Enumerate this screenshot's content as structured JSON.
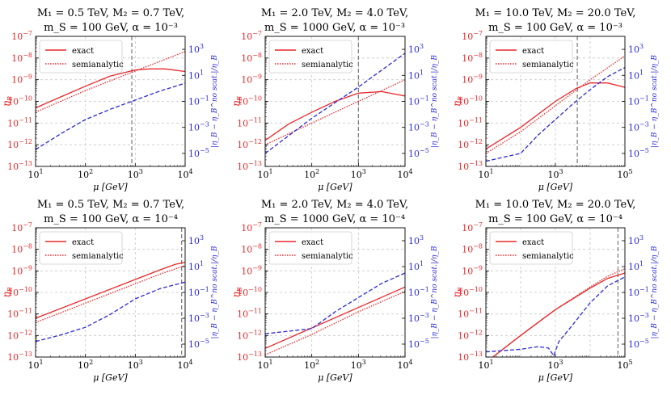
{
  "colors": {
    "exact": "#e8282b",
    "semi": "#e8282b",
    "ratio": "#2a2ad6",
    "vline": "#777777",
    "grid": "#c8c8c8"
  },
  "legend": {
    "exact": "exact",
    "semi": "semianalytic"
  },
  "axis_text": {
    "xlabel": "μ [GeV]",
    "ylabel_left": "η",
    "ylabel_left_sub": "B",
    "ylabel_right": "|η_B − η_B^no scat.|/η_B",
    "eta_exponents": [
      "−7",
      "−8",
      "−9",
      "−10",
      "−11",
      "−12",
      "−13"
    ],
    "ratio_exponents": [
      "3",
      "1",
      "−1",
      "−3",
      "−5"
    ],
    "x_exponents_short": [
      "1",
      "2",
      "3",
      "4"
    ],
    "x_exponents_long": [
      "1",
      "3",
      "5"
    ]
  },
  "chart_data": [
    {
      "type": "line",
      "title": [
        "M₁ = 0.5 TeV,  M₂ = 0.7 TeV,",
        "m_S = 100 GeV,  α = 10⁻³"
      ],
      "xrange": [
        1,
        4
      ],
      "xticks": [
        1,
        2,
        3,
        4
      ],
      "xlabel": "μ [GeV]",
      "ylim_left_log10": [
        -13,
        -7
      ],
      "ylim_right_log10": [
        -6,
        4
      ],
      "vline_log10": 2.93,
      "series": [
        {
          "name": "exact",
          "log10x": [
            1,
            1.5,
            2,
            2.5,
            3,
            3.3,
            3.6,
            4
          ],
          "log10y": [
            -10.3,
            -9.8,
            -9.3,
            -8.83,
            -8.55,
            -8.5,
            -8.5,
            -8.62
          ]
        },
        {
          "name": "semianalytic",
          "log10x": [
            1,
            2,
            3,
            4
          ],
          "log10y": [
            -10.5,
            -9.5,
            -8.6,
            -7.7
          ]
        },
        {
          "name": "ratio",
          "log10x": [
            1,
            1.5,
            2,
            2.5,
            3,
            3.5,
            4
          ],
          "log10y": [
            -4.7,
            -3.5,
            -2.4,
            -1.6,
            -0.9,
            -0.2,
            0.4
          ]
        }
      ]
    },
    {
      "type": "line",
      "title": [
        "M₁ = 2.0 TeV,  M₂ = 4.0 TeV,",
        "m_S = 1000 GeV,  α = 10⁻³"
      ],
      "xrange": [
        1,
        4
      ],
      "xticks": [
        1,
        2,
        3,
        4
      ],
      "xlabel": "μ [GeV]",
      "ylim_left_log10": [
        -13,
        -7
      ],
      "ylim_right_log10": [
        -6,
        4
      ],
      "vline_log10": 3.0,
      "series": [
        {
          "name": "exact",
          "log10x": [
            1,
            1.5,
            2,
            2.5,
            3,
            3.5,
            4
          ],
          "log10y": [
            -11.8,
            -11.05,
            -10.5,
            -10.0,
            -9.62,
            -9.55,
            -9.75
          ]
        },
        {
          "name": "semianalytic",
          "log10x": [
            1,
            2,
            3,
            4
          ],
          "log10y": [
            -12.0,
            -11.0,
            -10.0,
            -9.0
          ]
        },
        {
          "name": "ratio",
          "log10x": [
            1,
            2,
            3,
            4
          ],
          "log10y": [
            -5.0,
            -2.3,
            0.1,
            2.7
          ]
        }
      ]
    },
    {
      "type": "line",
      "title": [
        "M₁ = 10.0 TeV,  M₂ = 20.0 TeV,",
        "m_S = 100 GeV,  α = 10⁻³"
      ],
      "xrange": [
        1,
        5
      ],
      "xticks": [
        1,
        3,
        5
      ],
      "xlabel": "μ [GeV]",
      "ylim_left_log10": [
        -13,
        -7
      ],
      "ylim_right_log10": [
        -6,
        4
      ],
      "vline_log10": 3.63,
      "series": [
        {
          "name": "exact",
          "log10x": [
            1,
            2,
            3,
            3.6,
            4,
            4.5,
            5
          ],
          "log10y": [
            -12.2,
            -11.2,
            -10.0,
            -9.4,
            -9.15,
            -9.15,
            -9.35
          ]
        },
        {
          "name": "semianalytic",
          "log10x": [
            1,
            2,
            3,
            4,
            5
          ],
          "log10y": [
            -12.4,
            -11.4,
            -10.2,
            -9.0,
            -7.9
          ]
        },
        {
          "name": "ratio",
          "log10x": [
            1,
            1.5,
            2,
            2.5,
            3,
            3.5,
            4,
            4.5,
            5
          ],
          "log10y": [
            -5.6,
            -5.3,
            -5.0,
            -3.6,
            -2.4,
            -1.2,
            -0.1,
            0.9,
            1.6
          ]
        }
      ]
    },
    {
      "type": "line",
      "title": [
        "M₁ = 0.5 TeV,  M₂ = 0.7 TeV,",
        "m_S = 100 GeV,  α = 10⁻⁴"
      ],
      "xrange": [
        1,
        4
      ],
      "xticks": [
        1,
        2,
        3,
        4
      ],
      "xlabel": "μ [GeV]",
      "ylim_left_log10": [
        -13,
        -7
      ],
      "ylim_right_log10": [
        -6,
        4
      ],
      "vline_log10": 3.93,
      "series": [
        {
          "name": "exact",
          "log10x": [
            1,
            2,
            3,
            3.5,
            3.8,
            4
          ],
          "log10y": [
            -11.2,
            -10.3,
            -9.4,
            -8.95,
            -8.7,
            -8.6
          ]
        },
        {
          "name": "semianalytic",
          "log10x": [
            1,
            2,
            3,
            3.5,
            4
          ],
          "log10y": [
            -11.4,
            -10.5,
            -9.6,
            -9.15,
            -8.75
          ]
        },
        {
          "name": "ratio",
          "log10x": [
            1,
            1.5,
            2,
            2.5,
            3,
            3.5,
            4
          ],
          "log10y": [
            -4.8,
            -4.3,
            -3.7,
            -2.7,
            -1.5,
            -0.7,
            -0.2
          ]
        }
      ]
    },
    {
      "type": "line",
      "title": [
        "M₁ = 2.0 TeV,  M₂ = 4.0 TeV,",
        "m_S = 1000 GeV,  α = 10⁻⁴"
      ],
      "xrange": [
        1,
        4
      ],
      "xticks": [
        1,
        2,
        3,
        4
      ],
      "xlabel": "μ [GeV]",
      "ylim_left_log10": [
        -13,
        -7
      ],
      "ylim_right_log10": [
        -6,
        4
      ],
      "vline_log10": null,
      "series": [
        {
          "name": "exact",
          "log10x": [
            1,
            2,
            3,
            4
          ],
          "log10y": [
            -12.6,
            -11.65,
            -10.7,
            -9.75
          ]
        },
        {
          "name": "semianalytic",
          "log10x": [
            1,
            2,
            3,
            4
          ],
          "log10y": [
            -12.9,
            -11.95,
            -10.9,
            -9.95
          ]
        },
        {
          "name": "ratio",
          "log10x": [
            1,
            1.5,
            2,
            2.5,
            3,
            3.5,
            4
          ],
          "log10y": [
            -4.2,
            -4.0,
            -3.8,
            -2.5,
            -1.4,
            -0.3,
            0.5
          ]
        }
      ]
    },
    {
      "type": "line",
      "title": [
        "M₁ = 10.0 TeV,  M₂ = 20.0 TeV,",
        "m_S = 100 GeV,  α = 10⁻⁴"
      ],
      "xrange": [
        1,
        5
      ],
      "xticks": [
        1,
        3,
        5
      ],
      "xlabel": "μ [GeV]",
      "ylim_left_log10": [
        -13,
        -7
      ],
      "ylim_right_log10": [
        -6,
        4
      ],
      "vline_log10": 4.8,
      "series": [
        {
          "name": "exact",
          "log10x": [
            1.2,
            2,
            3,
            4,
            4.5,
            5
          ],
          "log10y": [
            -13.0,
            -12.0,
            -10.8,
            -9.8,
            -9.35,
            -9.1
          ]
        },
        {
          "name": "semianalytic",
          "log10x": [
            1.2,
            2,
            3,
            4,
            4.5,
            5
          ],
          "log10y": [
            -13.0,
            -12.0,
            -10.8,
            -9.75,
            -9.25,
            -8.9
          ]
        },
        {
          "name": "ratio",
          "log10x": [
            1,
            1.5,
            2,
            2.5,
            2.8,
            2.95,
            3.1,
            3.5,
            4,
            4.5,
            5
          ],
          "log10y": [
            -5.6,
            -5.5,
            -5.4,
            -5.2,
            -5.3,
            -5.9,
            -4.8,
            -3.5,
            -1.8,
            -0.5,
            0.2
          ]
        }
      ]
    }
  ]
}
